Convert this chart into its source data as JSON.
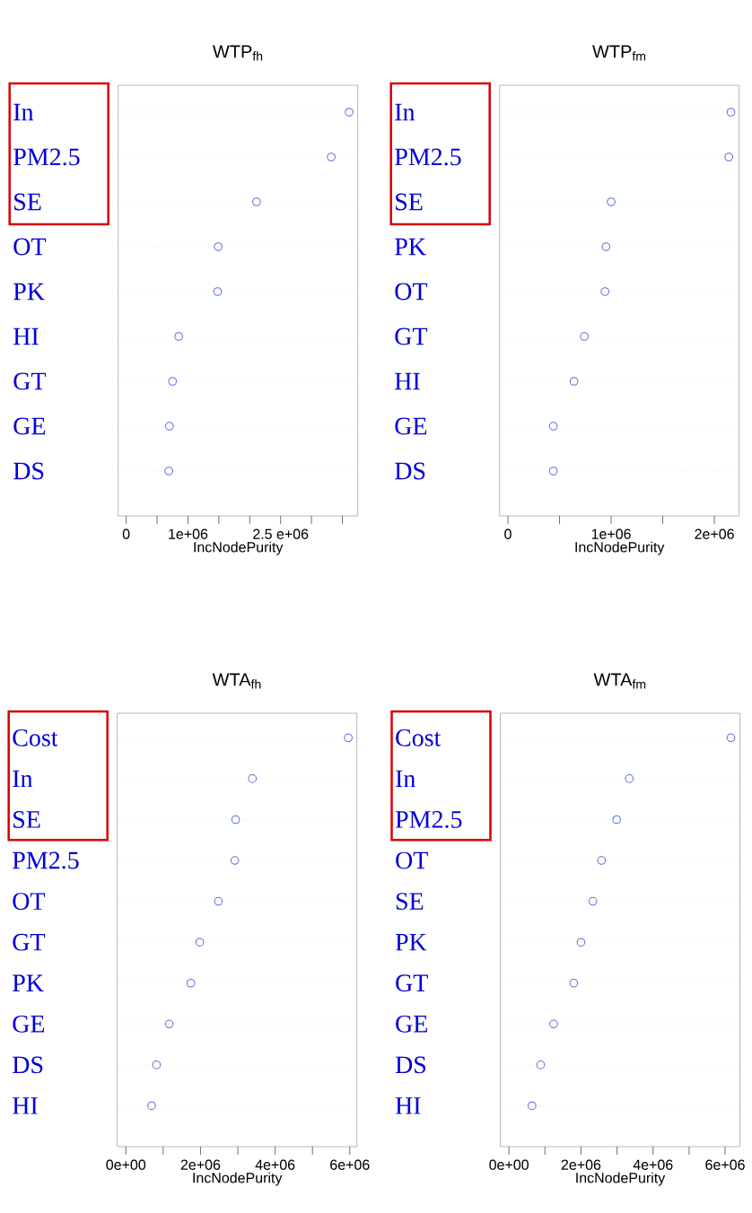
{
  "chart_data": [
    {
      "type": "scatter",
      "orientation": "horizontal",
      "title": "WTP$_{fh}$",
      "xlabel": "IncNodePurity",
      "categories": [
        "In",
        "PM2.5",
        "SE",
        "OT",
        "PK",
        "HI",
        "GT",
        "GE",
        "DS"
      ],
      "values": [
        3610000,
        3320000,
        2110000,
        1490000,
        1480000,
        850000,
        750000,
        700000,
        690000
      ],
      "color": "#5b6bd6",
      "marker": "circle",
      "grid": "y",
      "xlim": [
        -130000,
        3750000
      ],
      "xticks": [
        0,
        {
          "value": 500000,
          "label": null
        },
        {
          "value": 1000000,
          "label": "1e+06"
        },
        {
          "value": 1500000,
          "label": null
        },
        {
          "value": 2000000,
          "label": null
        },
        {
          "value": 2500000,
          "label": "2.5 e+06"
        },
        {
          "value": 3000000,
          "label": null
        },
        {
          "value": 3500000,
          "label": null
        }
      ]
    },
    {
      "type": "scatter",
      "orientation": "horizontal",
      "title": "WTP$_{fm}$",
      "xlabel": "IncNodePurity",
      "categories": [
        "In",
        "PM2.5",
        "SE",
        "PK",
        "OT",
        "GT",
        "HI",
        "GE",
        "DS"
      ],
      "values": [
        2160000,
        2140000,
        1000000,
        950000,
        940000,
        740000,
        640000,
        440000,
        440000
      ],
      "color": "#5b6bd6",
      "marker": "circle",
      "grid": "y",
      "xlim": [
        -81000,
        2240000
      ],
      "xticks": [
        0,
        {
          "value": 500000,
          "label": null
        },
        {
          "value": 1000000,
          "label": "1e+06"
        },
        {
          "value": 1500000,
          "label": null
        },
        {
          "value": 2000000,
          "label": "2e+06"
        }
      ]
    },
    {
      "type": "scatter",
      "orientation": "horizontal",
      "title": "WTA$_{fh}$",
      "xlabel": "IncNodePurity",
      "categories": [
        "Cost",
        "In",
        "SE",
        "PM2.5",
        "OT",
        "GT",
        "PK",
        "GE",
        "DS",
        "HI"
      ],
      "values": [
        5960000,
        3390000,
        2940000,
        2920000,
        2480000,
        1980000,
        1740000,
        1160000,
        820000,
        690000
      ],
      "color": "#5b6bd6",
      "marker": "circle",
      "grid": "y",
      "xlim": [
        -230000,
        6190000
      ],
      "xticks": [
        {
          "value": 0,
          "label": "0e+00"
        },
        {
          "value": 1000000,
          "label": null
        },
        {
          "value": 2000000,
          "label": "2e+06"
        },
        {
          "value": 3000000,
          "label": null
        },
        {
          "value": 4000000,
          "label": "4e+06"
        },
        {
          "value": 5000000,
          "label": null
        },
        {
          "value": 6000000,
          "label": "6e+06"
        }
      ]
    },
    {
      "type": "scatter",
      "orientation": "horizontal",
      "title": "WTA$_{fm}$",
      "xlabel": "IncNodePurity",
      "categories": [
        "Cost",
        "In",
        "PM2.5",
        "OT",
        "SE",
        "PK",
        "GT",
        "GE",
        "DS",
        "HI"
      ],
      "values": [
        6160000,
        3340000,
        2990000,
        2570000,
        2330000,
        2000000,
        1800000,
        1240000,
        880000,
        640000
      ],
      "color": "#5b6bd6",
      "marker": "circle",
      "grid": "y",
      "xlim": [
        -240000,
        6410000
      ],
      "xticks": [
        {
          "value": 0,
          "label": "0e+00"
        },
        {
          "value": 1000000,
          "label": null
        },
        {
          "value": 2000000,
          "label": "2e+06"
        },
        {
          "value": 3000000,
          "label": null
        },
        {
          "value": 4000000,
          "label": "4e+06"
        },
        {
          "value": 5000000,
          "label": null
        },
        {
          "value": 6000000,
          "label": "6e+06"
        }
      ]
    }
  ]
}
